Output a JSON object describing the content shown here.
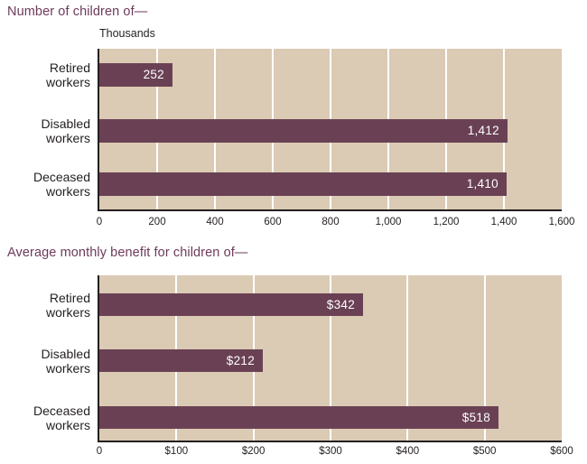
{
  "colors": {
    "title": "#6d3a5c",
    "bar": "#6a4154",
    "plot_background": "#dbcab4",
    "axis": "#231f20",
    "text": "#231f20",
    "gridline": "#ffffff",
    "value_label": "#ffffff",
    "page_background": "#ffffff"
  },
  "chart_data": [
    {
      "type": "bar",
      "orientation": "horizontal",
      "title": "Number of children of—",
      "unit_label": "Thousands",
      "categories": [
        "Retired\nworkers",
        "Disabled\nworkers",
        "Deceased\nworkers"
      ],
      "values": [
        252,
        1412,
        1410
      ],
      "value_labels": [
        "252",
        "1,412",
        "1,410"
      ],
      "xlim": [
        0,
        1600
      ],
      "xticks": [
        0,
        200,
        400,
        600,
        800,
        1000,
        1200,
        1400,
        1600
      ],
      "xtick_labels": [
        "0",
        "200",
        "400",
        "600",
        "800",
        "1,000",
        "1,200",
        "1,400",
        "1,600"
      ],
      "grid": "vertical-white-lines",
      "legend": "none"
    },
    {
      "type": "bar",
      "orientation": "horizontal",
      "title": "Average monthly benefit for children of—",
      "unit_label": "",
      "categories": [
        "Retired\nworkers",
        "Disabled\nworkers",
        "Deceased\nworkers"
      ],
      "values": [
        342,
        212,
        518
      ],
      "value_labels": [
        "$342",
        "$212",
        "$518"
      ],
      "xlim": [
        0,
        600
      ],
      "xticks": [
        0,
        100,
        200,
        300,
        400,
        500,
        600
      ],
      "xtick_labels": [
        "0",
        "$100",
        "$200",
        "$300",
        "$400",
        "$500",
        "$600"
      ],
      "grid": "vertical-white-lines",
      "legend": "none"
    }
  ]
}
